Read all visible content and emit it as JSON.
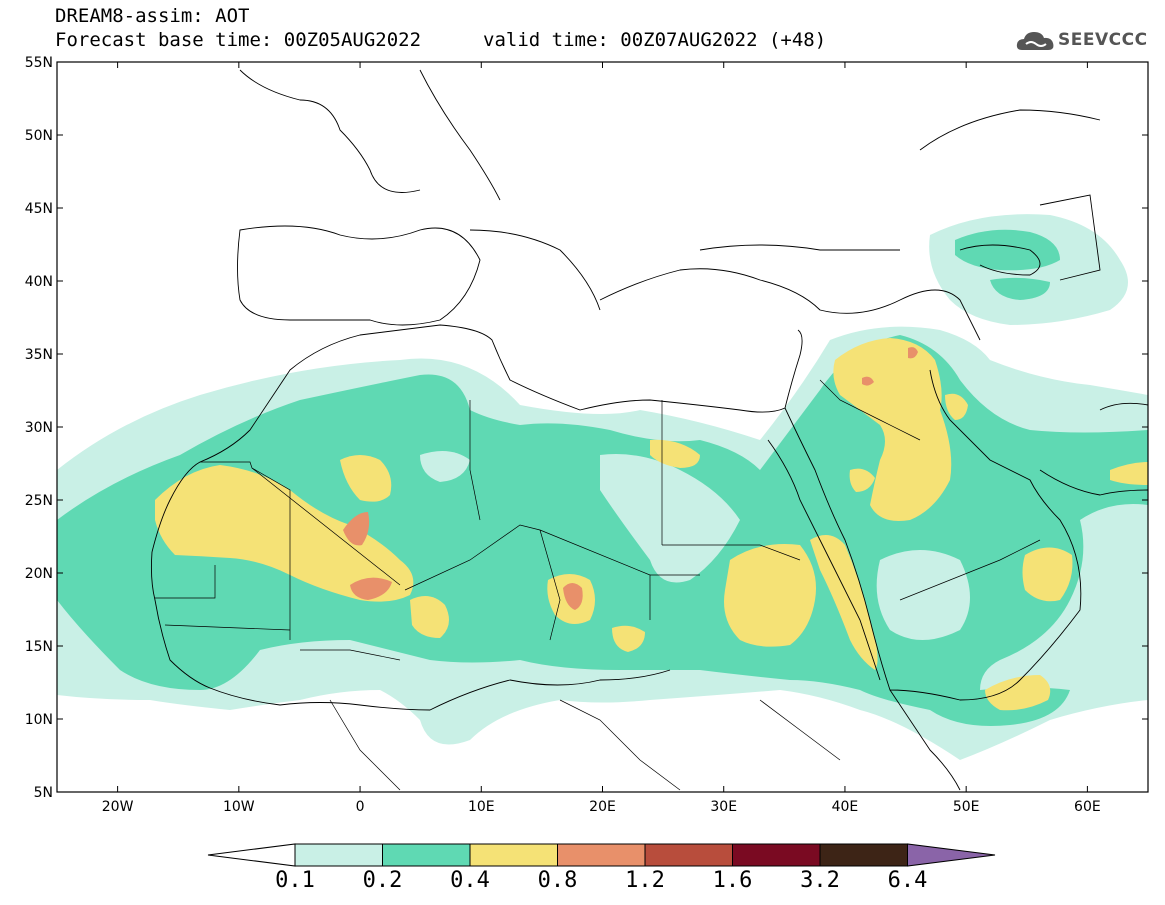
{
  "header": {
    "title_line1": "DREAM8-assim: AOT",
    "title_line2": "Forecast base time: 00Z05AUG2022",
    "valid_time": "valid time: 00Z07AUG2022 (+48)",
    "logo_text": "SEEVCCC"
  },
  "map": {
    "lon_range": [
      -25,
      65
    ],
    "lat_range": [
      5,
      55
    ],
    "lon_ticks": [
      "20W",
      "10W",
      "0",
      "10E",
      "20E",
      "30E",
      "40E",
      "50E",
      "60E"
    ],
    "lat_ticks": [
      "55N",
      "50N",
      "45N",
      "40N",
      "35N",
      "30N",
      "25N",
      "20N",
      "15N",
      "10N",
      "5N"
    ]
  },
  "colorbar": {
    "labels": [
      "0.1",
      "0.2",
      "0.4",
      "0.8",
      "1.2",
      "1.6",
      "3.2",
      "6.4"
    ],
    "colors": [
      "#ffffff",
      "#c9f0e6",
      "#5fd9b3",
      "#f5e276",
      "#e8906a",
      "#b84d3c",
      "#7a0a22",
      "#3d2416",
      "#8a64a8"
    ]
  },
  "palette": {
    "c1": "#c9f0e6",
    "c2": "#5fd9b3",
    "c3": "#f5e276",
    "c4": "#e8906a",
    "c5": "#b84d3c"
  }
}
